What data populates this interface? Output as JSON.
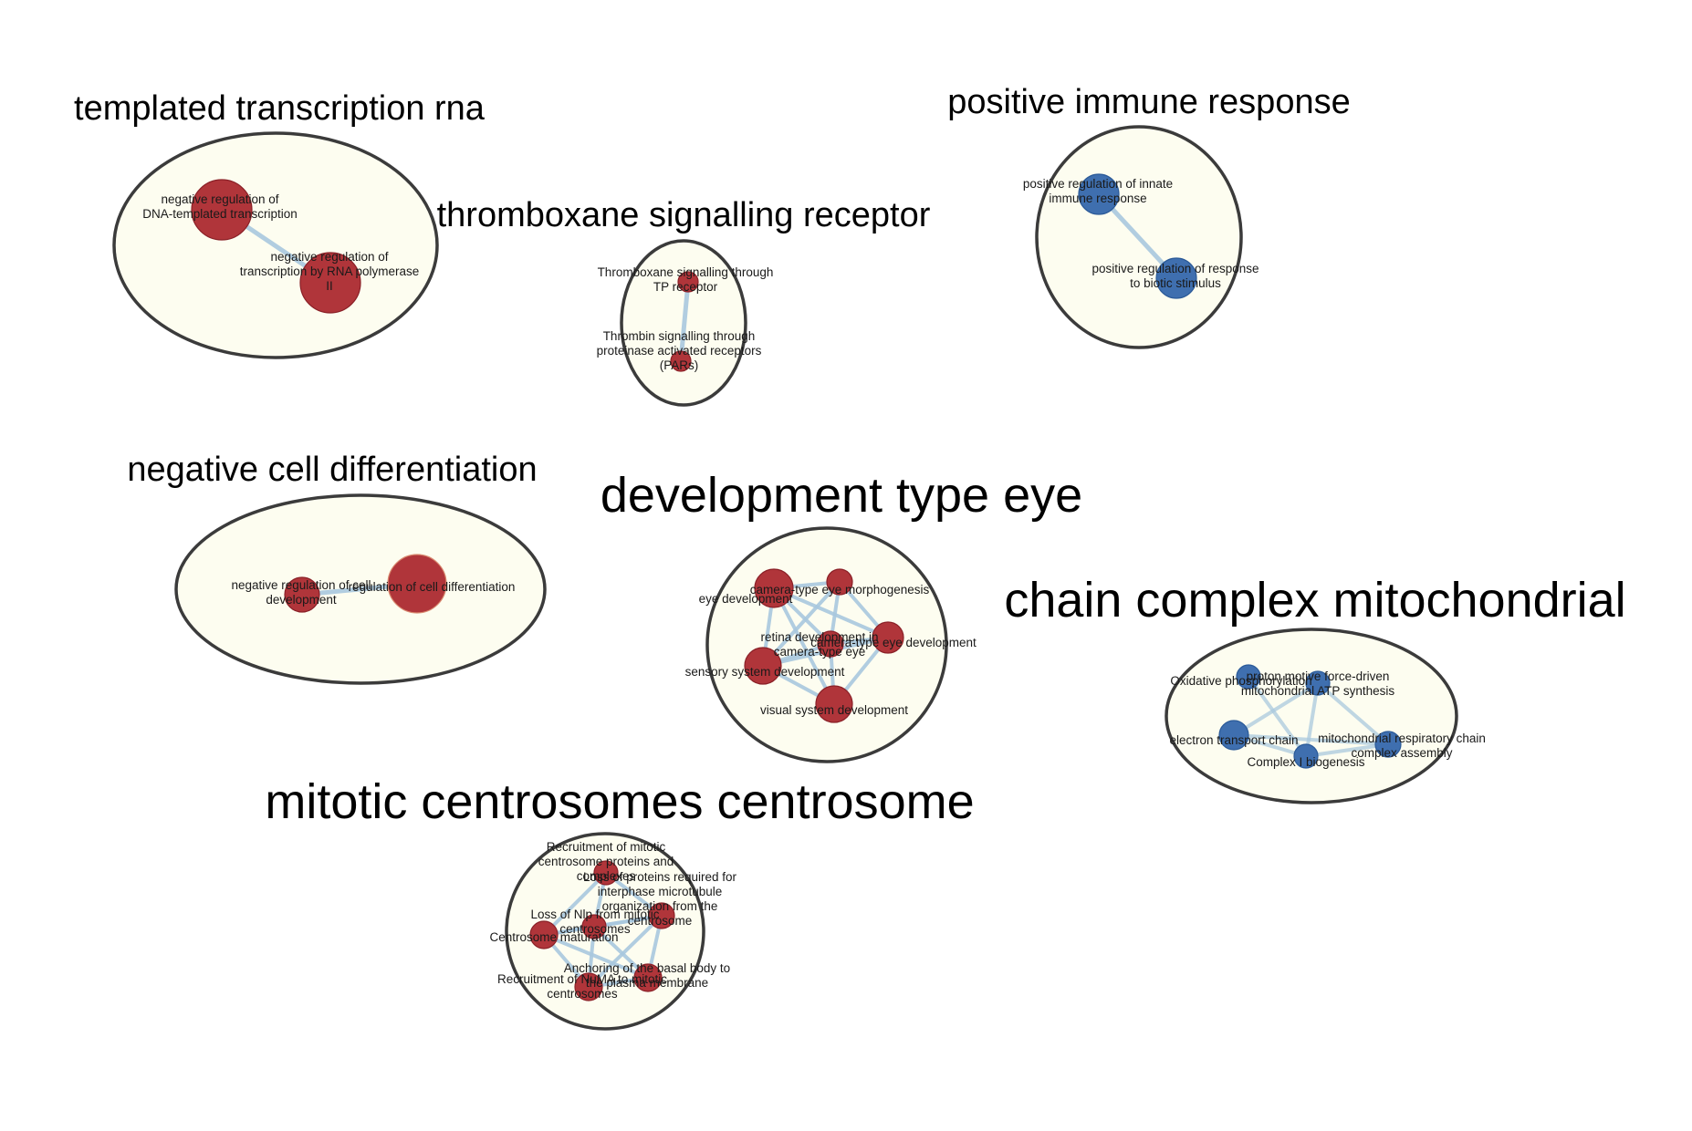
{
  "colors": {
    "background": "#ffffff",
    "cluster_fill": "#fdfdf0",
    "cluster_stroke": "#3b3b3b",
    "edge": "#a9c8de",
    "node_red": "#b0353a",
    "node_red_stroke": "#8a2027",
    "node_blue": "#3f6faf",
    "node_blue_stroke": "#2b5a98"
  },
  "clusters": [
    {
      "id": "templated",
      "title": "templated transcription rna",
      "color": "red",
      "nodes": [
        {
          "id": "a1",
          "label": [
            "negative regulation of",
            "DNA-templated transcription"
          ]
        },
        {
          "id": "a2",
          "label": [
            "negative regulation of",
            "transcription by RNA polymerase",
            "II"
          ]
        }
      ],
      "edges": [
        [
          "a1",
          "a2"
        ]
      ]
    },
    {
      "id": "thromboxane",
      "title": "thromboxane signalling receptor",
      "color": "red",
      "nodes": [
        {
          "id": "b1",
          "label": [
            "Thromboxane signalling through",
            "TP receptor"
          ]
        },
        {
          "id": "b2",
          "label": [
            "Thrombin signalling through",
            "proteinase activated receptors",
            "(PARs)"
          ]
        }
      ],
      "edges": [
        [
          "b1",
          "b2"
        ]
      ]
    },
    {
      "id": "immune",
      "title": "positive immune response",
      "color": "blue",
      "nodes": [
        {
          "id": "c1",
          "label": [
            "positive regulation of innate",
            "immune response"
          ]
        },
        {
          "id": "c2",
          "label": [
            "positive regulation of response",
            "to biotic stimulus"
          ]
        }
      ],
      "edges": [
        [
          "c1",
          "c2"
        ]
      ]
    },
    {
      "id": "differentiation",
      "title": "negative cell differentiation",
      "color": "red",
      "nodes": [
        {
          "id": "d1",
          "label": [
            "negative regulation of cell",
            "development"
          ]
        },
        {
          "id": "d2",
          "label": [
            "regulation of cell differentiation"
          ]
        }
      ],
      "edges": [
        [
          "d1",
          "d2"
        ]
      ]
    },
    {
      "id": "eye",
      "title": "development type eye",
      "color": "red",
      "nodes": [
        {
          "id": "e1",
          "label": [
            "eye development"
          ]
        },
        {
          "id": "e2",
          "label": [
            "camera-type eye morphogenesis"
          ]
        },
        {
          "id": "e3",
          "label": [
            "camera-type eye development"
          ]
        },
        {
          "id": "e4",
          "label": [
            "retina development in",
            "camera-type eye"
          ]
        },
        {
          "id": "e5",
          "label": [
            "sensory system development"
          ]
        },
        {
          "id": "e6",
          "label": [
            "visual system development"
          ]
        }
      ],
      "edges": [
        [
          "e1",
          "e2"
        ],
        [
          "e1",
          "e3"
        ],
        [
          "e1",
          "e4"
        ],
        [
          "e1",
          "e5"
        ],
        [
          "e1",
          "e6"
        ],
        [
          "e2",
          "e3"
        ],
        [
          "e2",
          "e4"
        ],
        [
          "e2",
          "e5"
        ],
        [
          "e3",
          "e4"
        ],
        [
          "e3",
          "e5"
        ],
        [
          "e3",
          "e6"
        ],
        [
          "e4",
          "e5"
        ],
        [
          "e4",
          "e6"
        ],
        [
          "e5",
          "e6"
        ]
      ]
    },
    {
      "id": "mitochondrial",
      "title": "chain complex mitochondrial",
      "color": "blue",
      "nodes": [
        {
          "id": "f1",
          "label": [
            "Oxidative phosphorylation"
          ]
        },
        {
          "id": "f2",
          "label": [
            "proton motive force-driven",
            "mitochondrial ATP synthesis"
          ]
        },
        {
          "id": "f3",
          "label": [
            "electron transport chain"
          ]
        },
        {
          "id": "f4",
          "label": [
            "Complex I biogenesis"
          ]
        },
        {
          "id": "f5",
          "label": [
            "mitochondrial respiratory chain",
            "complex assembly"
          ]
        }
      ],
      "edges": [
        [
          "f1",
          "f4"
        ],
        [
          "f2",
          "f3"
        ],
        [
          "f2",
          "f4"
        ],
        [
          "f2",
          "f5"
        ],
        [
          "f3",
          "f4"
        ],
        [
          "f4",
          "f5"
        ],
        [
          "f3",
          "f5"
        ]
      ]
    },
    {
      "id": "centrosome",
      "title": "mitotic centrosomes centrosome",
      "color": "red",
      "nodes": [
        {
          "id": "g1",
          "label": [
            "Recruitment of mitotic",
            "centrosome proteins and",
            "complexes"
          ]
        },
        {
          "id": "g2",
          "label": [
            "Loss of proteins required for",
            "interphase microtubule",
            "organization from the",
            "centrosome"
          ]
        },
        {
          "id": "g3",
          "label": [
            "Loss of Nlp from mitotic",
            "centrosomes"
          ]
        },
        {
          "id": "g4",
          "label": [
            "Centrosome maturation"
          ]
        },
        {
          "id": "g5",
          "label": [
            "Anchoring of the basal body to",
            "the plasma membrane"
          ]
        },
        {
          "id": "g6",
          "label": [
            "Recruitment of NuMA to mitotic",
            "centrosomes"
          ]
        }
      ],
      "edges": [
        [
          "g1",
          "g2"
        ],
        [
          "g1",
          "g3"
        ],
        [
          "g1",
          "g4"
        ],
        [
          "g2",
          "g3"
        ],
        [
          "g2",
          "g4"
        ],
        [
          "g2",
          "g5"
        ],
        [
          "g2",
          "g6"
        ],
        [
          "g3",
          "g4"
        ],
        [
          "g3",
          "g5"
        ],
        [
          "g3",
          "g6"
        ],
        [
          "g4",
          "g5"
        ],
        [
          "g4",
          "g6"
        ],
        [
          "g5",
          "g6"
        ]
      ]
    }
  ]
}
